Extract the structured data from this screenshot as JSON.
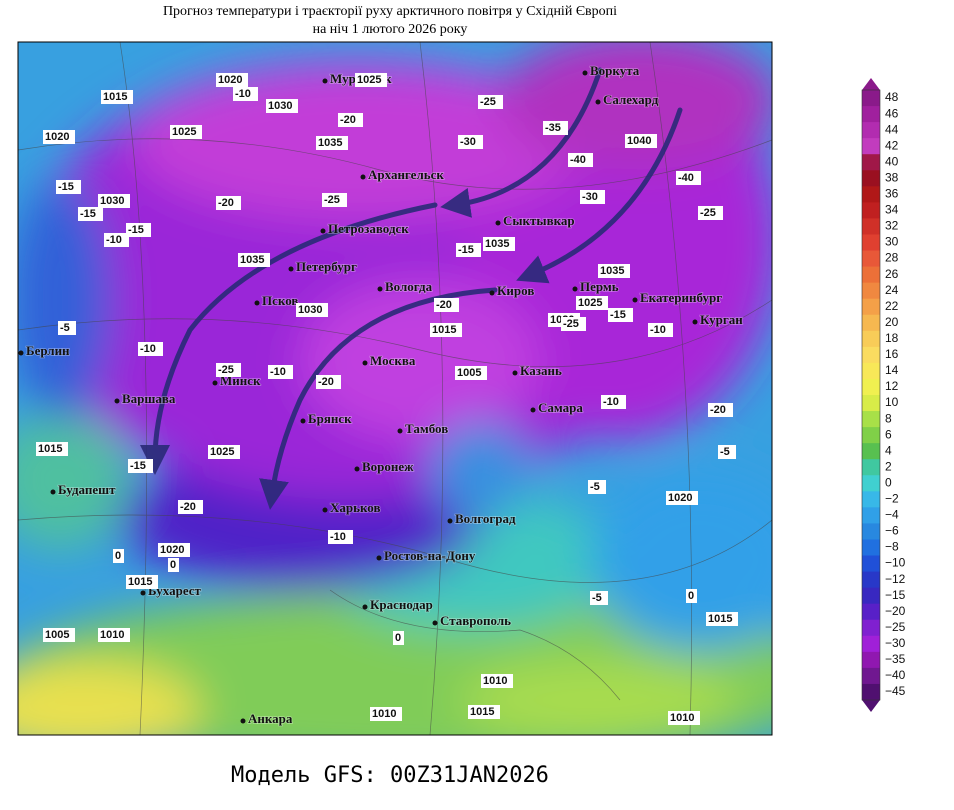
{
  "header": {
    "title_line1": "Прогноз температури і траєкторії руху арктичного повітря у Східній Європі",
    "title_line2": "на ніч 1 лютого 2026 року"
  },
  "footer": {
    "model": "Модель GFS: 00Z31JAN2026"
  },
  "cities": [
    "Воркута",
    "Салехард",
    "Мурманск",
    "Архангельск",
    "Сыктывкар",
    "Петрозаводск",
    "Петербург",
    "Вологда",
    "Киров",
    "Пермь",
    "Екатеринбург",
    "Курган",
    "Псков",
    "Минск",
    "Москва",
    "Казань",
    "Берлин",
    "Варшава",
    "Брянск",
    "Тамбов",
    "Самара",
    "Воронеж",
    "Харьков",
    "Будапешт",
    "Волгоград",
    "Ростов-на-Дону",
    "Бухарест",
    "Краснодар",
    "Ставрополь",
    "Анкара"
  ],
  "pressure_labels": [
    1020,
    1015,
    1025,
    1020,
    1030,
    1025,
    1030,
    1035,
    1035,
    1030,
    1035,
    1040,
    1035,
    1025,
    1020,
    1015,
    1005,
    1015,
    1025,
    1020,
    1015,
    1005,
    1010,
    1020,
    1015,
    1010,
    1010,
    1015,
    1010
  ],
  "temperature_labels": [
    -10,
    -15,
    -10,
    -15,
    -20,
    -20,
    -25,
    -25,
    -30,
    -35,
    -40,
    -30,
    -40,
    -25,
    -15,
    -25,
    -20,
    -15,
    -5,
    -10,
    -20,
    -25,
    -15,
    -10,
    -20,
    -10,
    -15,
    -10,
    -5,
    -20,
    -10,
    -5,
    0,
    0,
    -5,
    0,
    0
  ],
  "colorbar": {
    "ticks": [
      48,
      46,
      44,
      42,
      40,
      38,
      36,
      34,
      32,
      30,
      28,
      26,
      24,
      22,
      20,
      18,
      16,
      14,
      12,
      10,
      8,
      6,
      4,
      2,
      0,
      {
        "value": -2,
        "label": "−2"
      },
      {
        "value": -4,
        "label": "−4"
      },
      {
        "value": -6,
        "label": "−6"
      },
      {
        "value": -8,
        "label": "−8"
      },
      {
        "value": -10,
        "label": "−10"
      },
      {
        "value": -12,
        "label": "−12"
      },
      {
        "value": -15,
        "label": "−15"
      },
      {
        "value": -20,
        "label": "−20"
      },
      {
        "value": -25,
        "label": "−25"
      },
      {
        "value": -30,
        "label": "−30"
      },
      {
        "value": -35,
        "label": "−35"
      },
      {
        "value": -40,
        "label": "−40"
      },
      {
        "value": -45,
        "label": "−45"
      }
    ],
    "colors": [
      "#8a1a8a",
      "#a0209e",
      "#b22cb0",
      "#c23cbe",
      "#a01848",
      "#9a1020",
      "#b01818",
      "#c02020",
      "#d03028",
      "#e04030",
      "#e85838",
      "#ec7038",
      "#f08840",
      "#f4a048",
      "#f6b850",
      "#f8cc58",
      "#fadc60",
      "#f8e858",
      "#f0f050",
      "#d8ec48",
      "#a8e048",
      "#80d048",
      "#58c050",
      "#40c8a0",
      "#40d0d0",
      "#38b8e8",
      "#30a0e8",
      "#2888e0",
      "#2070e0",
      "#2050d8",
      "#2838c8",
      "#3828c0",
      "#5820c8",
      "#8020d0",
      "#a020d8",
      "#9018b0",
      "#701890",
      "#501070"
    ]
  }
}
